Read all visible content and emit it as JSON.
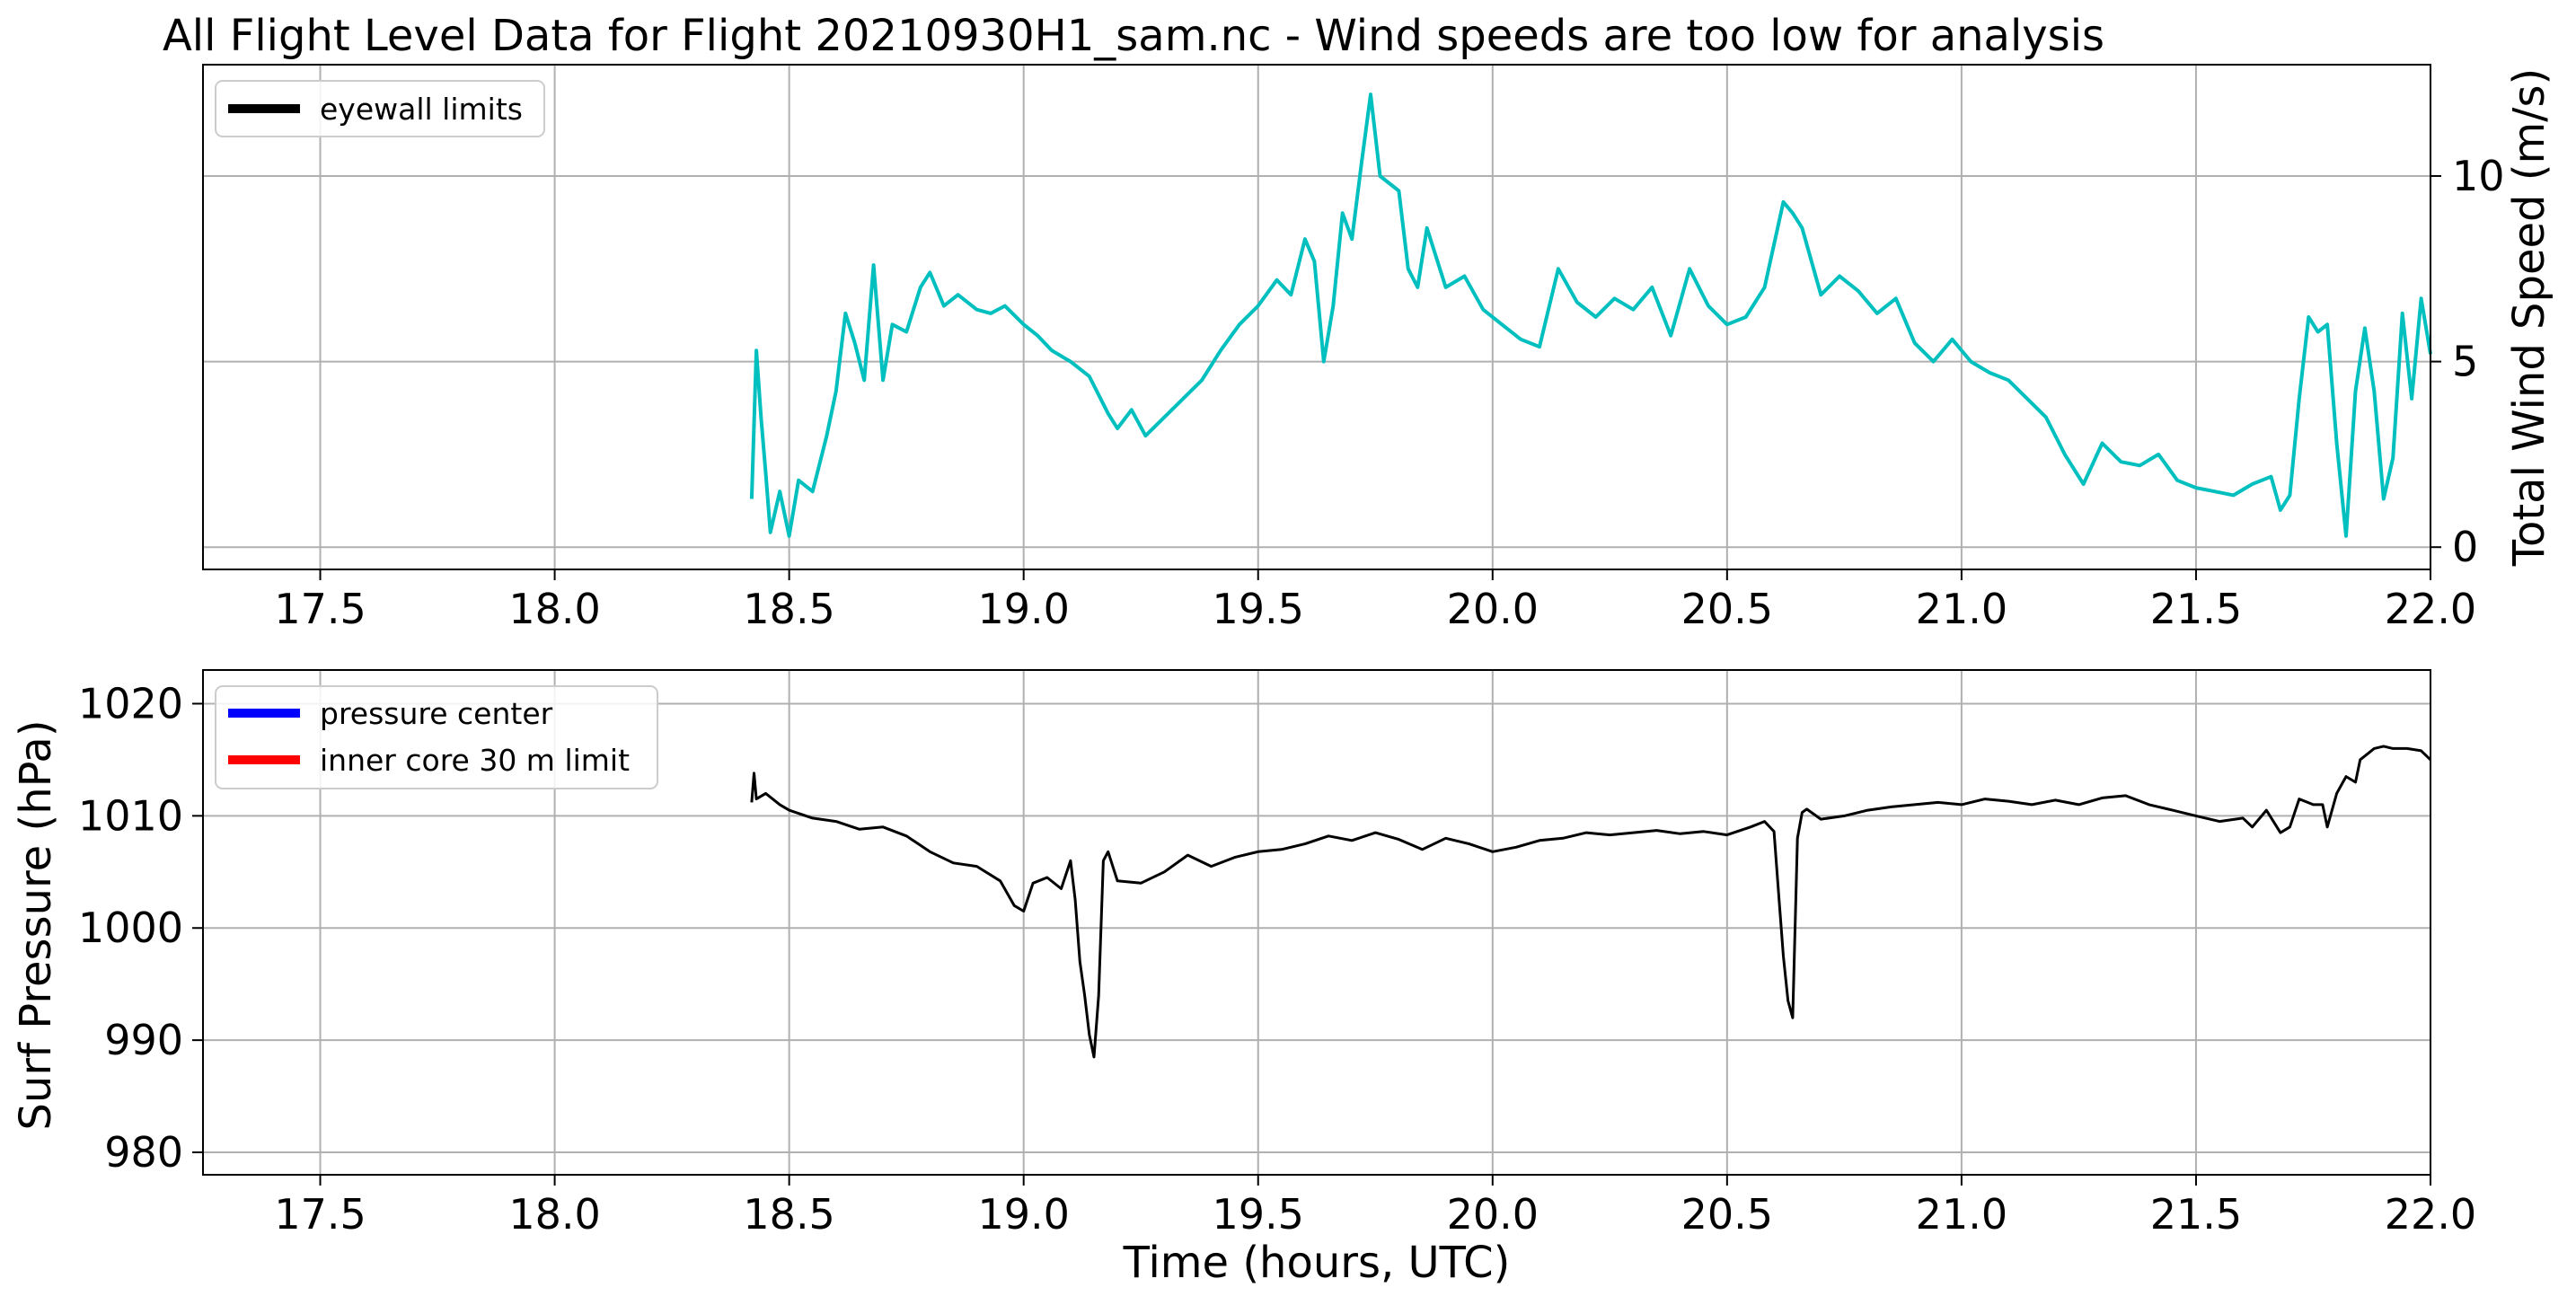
{
  "chart_data": [
    {
      "type": "line",
      "title": "All Flight Level Data for Flight 20210930H1_sam.nc - Wind speeds are too low for analysis",
      "xlabel": "",
      "ylabel": "Total Wind Speed (m/s)",
      "ylabel_color": "#00bfbf",
      "y_axis_side": "right",
      "xlim": [
        17.25,
        22.0
      ],
      "ylim": [
        -0.6,
        13.0
      ],
      "xticks": [
        17.5,
        18.0,
        18.5,
        19.0,
        19.5,
        20.0,
        20.5,
        21.0,
        21.5,
        22.0
      ],
      "xtick_labels": [
        "17.5",
        "18.0",
        "18.5",
        "19.0",
        "19.5",
        "20.0",
        "20.5",
        "21.0",
        "21.5",
        "22.0"
      ],
      "yticks": [
        0,
        5,
        10
      ],
      "ytick_labels": [
        "0",
        "5",
        "10"
      ],
      "grid": true,
      "legend": {
        "placement": "upper-left",
        "entries": [
          {
            "label": "eyewall limits",
            "color": "#000000"
          }
        ]
      },
      "series": [
        {
          "color": "#00bfbf",
          "x": [
            18.42,
            18.43,
            18.44,
            18.45,
            18.46,
            18.48,
            18.5,
            18.52,
            18.55,
            18.58,
            18.6,
            18.62,
            18.64,
            18.66,
            18.68,
            18.7,
            18.72,
            18.75,
            18.78,
            18.8,
            18.83,
            18.86,
            18.9,
            18.93,
            18.96,
            19.0,
            19.03,
            19.06,
            19.1,
            19.14,
            19.18,
            19.2,
            19.23,
            19.26,
            19.3,
            19.34,
            19.38,
            19.42,
            19.46,
            19.5,
            19.54,
            19.57,
            19.6,
            19.62,
            19.64,
            19.66,
            19.68,
            19.7,
            19.72,
            19.74,
            19.76,
            19.8,
            19.82,
            19.84,
            19.86,
            19.9,
            19.94,
            19.98,
            20.02,
            20.06,
            20.1,
            20.14,
            20.18,
            20.22,
            20.26,
            20.3,
            20.34,
            20.38,
            20.42,
            20.46,
            20.5,
            20.54,
            20.58,
            20.62,
            20.64,
            20.66,
            20.7,
            20.74,
            20.78,
            20.82,
            20.86,
            20.9,
            20.94,
            20.98,
            21.02,
            21.06,
            21.1,
            21.14,
            21.18,
            21.22,
            21.26,
            21.3,
            21.34,
            21.38,
            21.42,
            21.46,
            21.5,
            21.54,
            21.58,
            21.62,
            21.66,
            21.68,
            21.7,
            21.72,
            21.74,
            21.76,
            21.78,
            21.8,
            21.82,
            21.84,
            21.86,
            21.88,
            21.9,
            21.92,
            21.94,
            21.96,
            21.98,
            22.0
          ],
          "y": [
            1.3,
            5.3,
            3.5,
            2.0,
            0.4,
            1.5,
            0.3,
            1.8,
            1.5,
            3.0,
            4.2,
            6.3,
            5.5,
            4.5,
            7.6,
            4.5,
            6.0,
            5.8,
            7.0,
            7.4,
            6.5,
            6.8,
            6.4,
            6.3,
            6.5,
            6.0,
            5.7,
            5.3,
            5.0,
            4.6,
            3.6,
            3.2,
            3.7,
            3.0,
            3.5,
            4.0,
            4.5,
            5.3,
            6.0,
            6.5,
            7.2,
            6.8,
            8.3,
            7.7,
            5.0,
            6.5,
            9.0,
            8.3,
            10.3,
            12.2,
            10.0,
            9.6,
            7.5,
            7.0,
            8.6,
            7.0,
            7.3,
            6.4,
            6.0,
            5.6,
            5.4,
            7.5,
            6.6,
            6.2,
            6.7,
            6.4,
            7.0,
            5.7,
            7.5,
            6.5,
            6.0,
            6.2,
            7.0,
            9.3,
            9.0,
            8.6,
            6.8,
            7.3,
            6.9,
            6.3,
            6.7,
            5.5,
            5.0,
            5.6,
            5.0,
            4.7,
            4.5,
            4.0,
            3.5,
            2.5,
            1.7,
            2.8,
            2.3,
            2.2,
            2.5,
            1.8,
            1.6,
            1.5,
            1.4,
            1.7,
            1.9,
            1.0,
            1.4,
            4.0,
            6.2,
            5.8,
            6.0,
            2.8,
            0.3,
            4.2,
            5.9,
            4.2,
            1.3,
            2.4,
            6.3,
            4.0,
            6.7,
            5.2
          ]
        }
      ]
    },
    {
      "type": "line",
      "title": "",
      "xlabel": "Time (hours, UTC)",
      "ylabel": "Surf Pressure (hPa)",
      "xlim": [
        17.25,
        22.0
      ],
      "ylim": [
        978,
        1023
      ],
      "xticks": [
        17.5,
        18.0,
        18.5,
        19.0,
        19.5,
        20.0,
        20.5,
        21.0,
        21.5,
        22.0
      ],
      "xtick_labels": [
        "17.5",
        "18.0",
        "18.5",
        "19.0",
        "19.5",
        "20.0",
        "20.5",
        "21.0",
        "21.5",
        "22.0"
      ],
      "yticks": [
        980,
        990,
        1000,
        1010,
        1020
      ],
      "ytick_labels": [
        "980",
        "990",
        "1000",
        "1010",
        "1020"
      ],
      "grid": true,
      "legend": {
        "placement": "upper-left",
        "entries": [
          {
            "label": "pressure center",
            "color": "#0000ff"
          },
          {
            "label": "inner core 30 m limit",
            "color": "#ff0000"
          }
        ]
      },
      "series": [
        {
          "color": "#000000",
          "x": [
            18.42,
            18.425,
            18.43,
            18.45,
            18.48,
            18.5,
            18.55,
            18.6,
            18.65,
            18.7,
            18.75,
            18.8,
            18.85,
            18.9,
            18.95,
            18.98,
            19.0,
            19.02,
            19.05,
            19.08,
            19.1,
            19.11,
            19.12,
            19.13,
            19.14,
            19.15,
            19.16,
            19.17,
            19.18,
            19.2,
            19.25,
            19.3,
            19.35,
            19.4,
            19.45,
            19.5,
            19.55,
            19.6,
            19.65,
            19.7,
            19.75,
            19.8,
            19.85,
            19.9,
            19.95,
            20.0,
            20.05,
            20.1,
            20.15,
            20.2,
            20.25,
            20.3,
            20.35,
            20.4,
            20.45,
            20.5,
            20.55,
            20.58,
            20.6,
            20.61,
            20.62,
            20.63,
            20.64,
            20.65,
            20.66,
            20.67,
            20.7,
            20.75,
            20.8,
            20.85,
            20.9,
            20.95,
            21.0,
            21.05,
            21.1,
            21.15,
            21.2,
            21.25,
            21.3,
            21.35,
            21.4,
            21.45,
            21.5,
            21.55,
            21.6,
            21.62,
            21.65,
            21.68,
            21.7,
            21.72,
            21.75,
            21.77,
            21.78,
            21.8,
            21.82,
            21.84,
            21.85,
            21.88,
            21.9,
            21.92,
            21.95,
            21.98,
            22.0
          ],
          "y": [
            1011.2,
            1013.8,
            1011.5,
            1012.0,
            1011.0,
            1010.5,
            1009.8,
            1009.5,
            1008.8,
            1009.0,
            1008.2,
            1006.8,
            1005.8,
            1005.5,
            1004.2,
            1002.0,
            1001.5,
            1004.0,
            1004.5,
            1003.5,
            1006.0,
            1002.5,
            997.0,
            994.0,
            990.5,
            988.5,
            994.0,
            1006.0,
            1006.8,
            1004.2,
            1004.0,
            1005.0,
            1006.5,
            1005.5,
            1006.3,
            1006.8,
            1007.0,
            1007.5,
            1008.2,
            1007.8,
            1008.5,
            1007.9,
            1007.0,
            1008.0,
            1007.5,
            1006.8,
            1007.2,
            1007.8,
            1008.0,
            1008.5,
            1008.3,
            1008.5,
            1008.7,
            1008.4,
            1008.6,
            1008.3,
            1009.0,
            1009.5,
            1008.6,
            1003.0,
            997.5,
            993.5,
            992.0,
            1008.0,
            1010.3,
            1010.6,
            1009.7,
            1010.0,
            1010.5,
            1010.8,
            1011.0,
            1011.2,
            1011.0,
            1011.5,
            1011.3,
            1011.0,
            1011.4,
            1011.0,
            1011.6,
            1011.8,
            1011.0,
            1010.5,
            1010.0,
            1009.5,
            1009.8,
            1009.0,
            1010.5,
            1008.5,
            1009.0,
            1011.5,
            1011.0,
            1011.0,
            1009.0,
            1012.0,
            1013.5,
            1013.0,
            1015.0,
            1016.0,
            1016.2,
            1016.0,
            1016.0,
            1015.8,
            1015.0
          ]
        }
      ]
    }
  ]
}
